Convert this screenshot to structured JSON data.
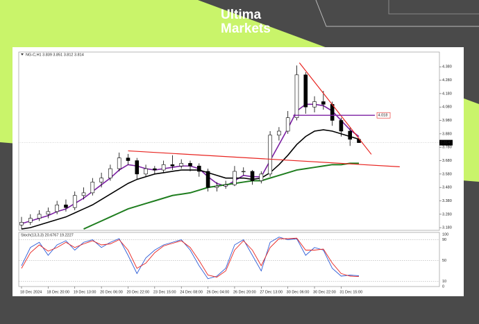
{
  "brand": {
    "line1": "Ultima",
    "line2": "Markets"
  },
  "chart_data": {
    "type": "candlestick",
    "header": "NG-C,H1  3.839 3.851 3.812 3.814",
    "categories": [
      "18 Dec 2024",
      null,
      null,
      "18 Dec 20:00",
      null,
      null,
      "19 Dec 13:00",
      null,
      null,
      "20 Dec 06:00",
      null,
      null,
      "20 Dec 22:00",
      null,
      null,
      "23 Dec 15:00",
      null,
      null,
      "24 Dec 08:00",
      null,
      null,
      "26 Dec 04:00",
      null,
      null,
      "26 Dec 20:00",
      null,
      null,
      "27 Dec 13:00",
      null,
      null,
      "30 Dec 06:00",
      null,
      null,
      "30 Dec 22:00",
      null,
      null,
      "31 Dec 15:00",
      null,
      null
    ],
    "open": [
      3.2,
      3.22,
      3.25,
      3.28,
      3.3,
      3.35,
      3.33,
      3.42,
      3.44,
      3.52,
      3.55,
      3.62,
      3.7,
      3.68,
      3.58,
      3.62,
      3.61,
      3.65,
      3.64,
      3.66,
      3.64,
      3.6,
      3.48,
      3.49,
      3.5,
      3.6,
      3.6,
      3.53,
      3.58,
      3.87,
      3.9,
      4.0,
      4.32,
      4.08,
      4.12,
      4.1,
      3.98,
      3.9,
      3.839
    ],
    "high": [
      3.26,
      3.28,
      3.31,
      3.33,
      3.38,
      3.39,
      3.45,
      3.48,
      3.55,
      3.59,
      3.65,
      3.74,
      3.73,
      3.7,
      3.65,
      3.64,
      3.68,
      3.72,
      3.69,
      3.68,
      3.66,
      3.62,
      3.52,
      3.53,
      3.64,
      3.63,
      3.61,
      3.6,
      3.9,
      3.93,
      4.05,
      4.39,
      4.34,
      4.16,
      4.2,
      4.12,
      4.0,
      3.93,
      3.851
    ],
    "low": [
      3.17,
      3.2,
      3.23,
      3.25,
      3.28,
      3.3,
      3.31,
      3.39,
      3.42,
      3.48,
      3.53,
      3.6,
      3.65,
      3.54,
      3.56,
      3.58,
      3.59,
      3.61,
      3.62,
      3.6,
      3.56,
      3.45,
      3.45,
      3.47,
      3.49,
      3.57,
      3.5,
      3.51,
      3.56,
      3.83,
      3.88,
      3.98,
      4.03,
      4.04,
      4.06,
      3.94,
      3.86,
      3.79,
      3.812
    ],
    "close": [
      3.22,
      3.25,
      3.28,
      3.3,
      3.35,
      3.33,
      3.42,
      3.44,
      3.52,
      3.55,
      3.62,
      3.7,
      3.68,
      3.58,
      3.62,
      3.61,
      3.65,
      3.64,
      3.66,
      3.64,
      3.6,
      3.48,
      3.49,
      3.5,
      3.6,
      3.6,
      3.53,
      3.58,
      3.87,
      3.9,
      4.0,
      4.32,
      4.08,
      4.12,
      4.1,
      3.98,
      3.9,
      3.839,
      3.814
    ],
    "candle_color": "#000000",
    "series": [
      {
        "color": "#7b1fa2",
        "values": [
          3.21,
          3.23,
          3.25,
          3.27,
          3.3,
          3.32,
          3.36,
          3.4,
          3.45,
          3.5,
          3.55,
          3.61,
          3.65,
          3.64,
          3.62,
          3.61,
          3.62,
          3.63,
          3.64,
          3.64,
          3.62,
          3.56,
          3.51,
          3.49,
          3.53,
          3.57,
          3.56,
          3.56,
          3.68,
          3.8,
          3.92,
          4.05,
          4.1,
          4.1,
          4.09,
          4.05,
          3.98,
          3.91,
          3.86
        ]
      },
      {
        "color": "#000000",
        "values": [
          3.17,
          3.18,
          3.2,
          3.22,
          3.24,
          3.26,
          3.29,
          3.32,
          3.35,
          3.39,
          3.43,
          3.47,
          3.51,
          3.54,
          3.56,
          3.58,
          3.59,
          3.6,
          3.61,
          3.61,
          3.61,
          3.59,
          3.57,
          3.55,
          3.55,
          3.55,
          3.54,
          3.55,
          3.59,
          3.65,
          3.72,
          3.8,
          3.86,
          3.9,
          3.91,
          3.9,
          3.88,
          3.86,
          3.84
        ]
      },
      {
        "color": "#1e7d1e",
        "values": [
          null,
          null,
          null,
          null,
          null,
          null,
          null,
          3.17,
          3.2,
          3.23,
          3.26,
          3.29,
          3.32,
          3.34,
          3.36,
          3.38,
          3.4,
          3.42,
          3.43,
          3.44,
          3.46,
          3.48,
          3.49,
          3.5,
          3.51,
          3.52,
          3.53,
          3.53,
          3.55,
          3.57,
          3.59,
          3.61,
          3.62,
          3.63,
          3.64,
          3.65,
          3.65,
          3.66,
          3.66
        ]
      }
    ],
    "trendlines": [
      {
        "color": "#e8231f",
        "x": [
          12,
          42.6
        ],
        "y": [
          3.753,
          3.634
        ]
      },
      {
        "color": "#e8231f",
        "x": [
          31.3,
          39.4
        ],
        "y": [
          4.41,
          3.727
        ]
      }
    ],
    "level": {
      "color": "#7b1fa2",
      "label_color": "#e8231f",
      "value": 4.018,
      "x": [
        30.6,
        39.8
      ]
    },
    "ylim": [
      3.16,
      4.49
    ],
    "yticks": [
      {
        "value": 3.18,
        "label": "3.180"
      },
      {
        "value": 3.28,
        "label": "3.280"
      },
      {
        "value": 3.38,
        "label": "3.380"
      },
      {
        "value": 3.48,
        "label": "3.480"
      },
      {
        "value": 3.58,
        "label": "3.580"
      },
      {
        "value": 3.68,
        "label": "3.680"
      },
      {
        "value": 3.78,
        "label": "3.780"
      },
      {
        "value": 3.88,
        "label": "3.880"
      },
      {
        "value": 3.98,
        "label": "3.980"
      },
      {
        "value": 4.08,
        "label": "4.080"
      },
      {
        "value": 4.18,
        "label": "4.180"
      },
      {
        "value": 4.28,
        "label": "4.280"
      },
      {
        "value": 4.38,
        "label": "4.380"
      }
    ],
    "indicator": {
      "title": "Stoch(13,3,3) 20.6767 19.2227",
      "ylim": [
        0,
        100
      ],
      "yticks": [
        0,
        10,
        50,
        90,
        100
      ],
      "levels": [
        10,
        50,
        90
      ],
      "series": [
        {
          "color": "#2b5bd6",
          "values": [
            40,
            75,
            85,
            60,
            80,
            88,
            70,
            85,
            90,
            75,
            85,
            92,
            60,
            25,
            55,
            70,
            80,
            85,
            90,
            70,
            40,
            15,
            20,
            35,
            80,
            90,
            60,
            30,
            85,
            95,
            90,
            92,
            60,
            75,
            70,
            35,
            20,
            22,
            20.6767
          ]
        },
        {
          "color": "#e8231f",
          "values": [
            35,
            65,
            80,
            68,
            75,
            85,
            75,
            82,
            88,
            80,
            82,
            90,
            70,
            35,
            45,
            65,
            78,
            83,
            88,
            75,
            50,
            22,
            18,
            30,
            70,
            88,
            70,
            40,
            75,
            92,
            92,
            93,
            70,
            70,
            72,
            45,
            25,
            20,
            19.2227
          ]
        }
      ]
    }
  }
}
